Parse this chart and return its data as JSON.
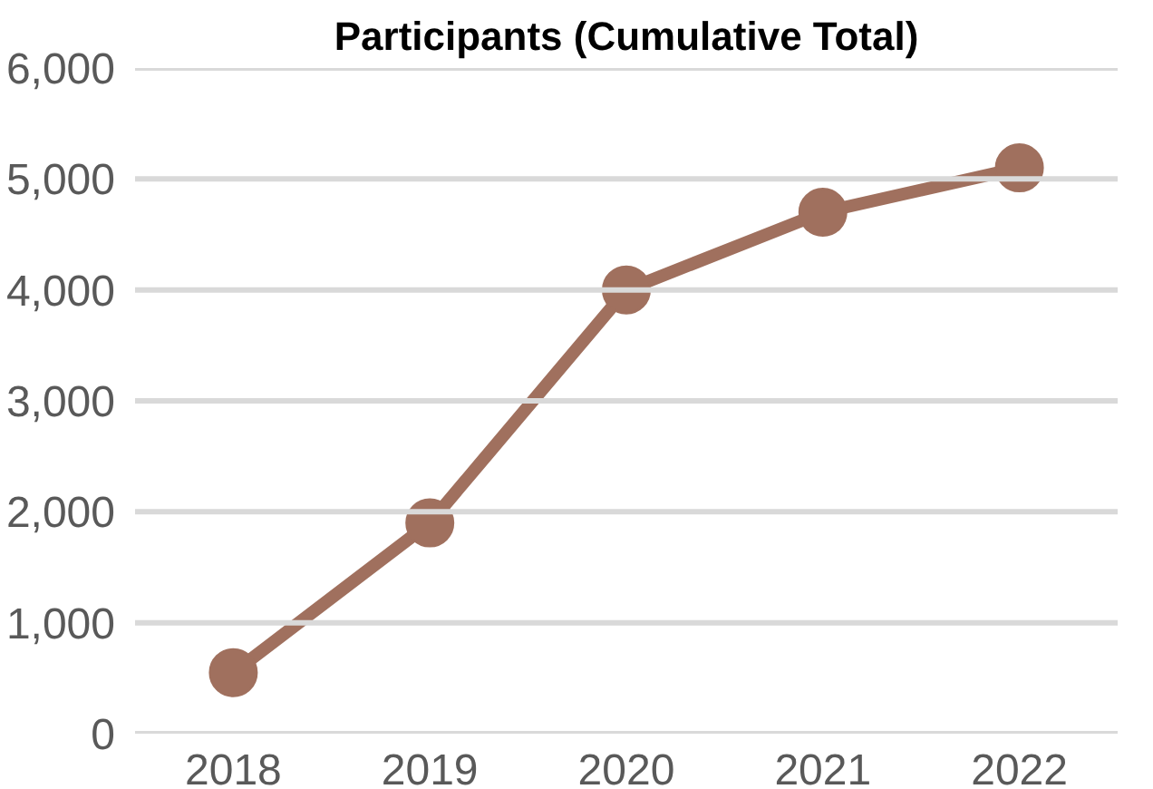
{
  "chart_data": {
    "type": "line",
    "title": "Participants (Cumulative Total)",
    "categories": [
      "2018",
      "2019",
      "2020",
      "2021",
      "2022"
    ],
    "series": [
      {
        "color": "#a0705e",
        "values": [
          550,
          1900,
          4000,
          4700,
          5100
        ]
      }
    ],
    "ylim": [
      0,
      6000
    ],
    "yticks": [
      {
        "value": 0,
        "label": "0"
      },
      {
        "value": 1000,
        "label": "1,000"
      },
      {
        "value": 2000,
        "label": "2,000"
      },
      {
        "value": 3000,
        "label": "3,000"
      },
      {
        "value": 4000,
        "label": "4,000"
      },
      {
        "value": 5000,
        "label": "5,000"
      },
      {
        "value": 6000,
        "label": "6,000"
      }
    ],
    "grid": "y",
    "marker": "circle",
    "line_style": "solid"
  }
}
